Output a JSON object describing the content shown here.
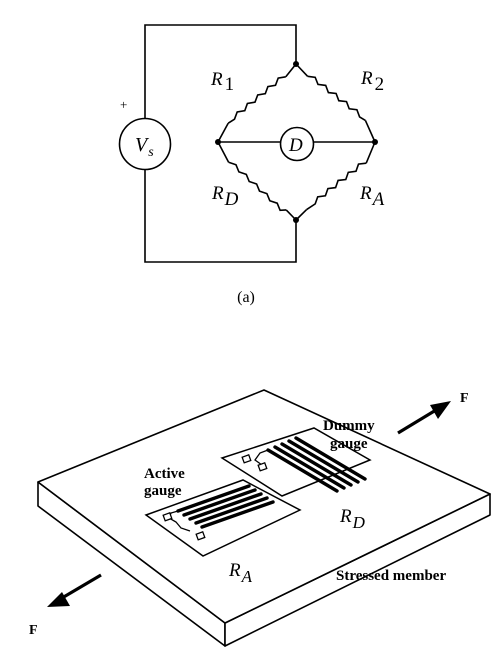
{
  "circuit": {
    "source_label": "V",
    "source_subscript": "s",
    "plus_sign": "+",
    "detector_label": "D",
    "r1": {
      "main": "R",
      "sub": "1"
    },
    "r2": {
      "main": "R",
      "sub": "2"
    },
    "rd": {
      "main": "R",
      "sub": "D"
    },
    "ra": {
      "main": "R",
      "sub": "A"
    },
    "caption": "(a)"
  },
  "assembly": {
    "force_top": "F",
    "force_bottom": "F",
    "active_line1": "Active",
    "active_line2": "gauge",
    "dummy_line1": "Dummy",
    "dummy_line2": "gauge",
    "ra": {
      "main": "R",
      "sub": "A"
    },
    "rd": {
      "main": "R",
      "sub": "D"
    },
    "member_label": "Stressed member"
  }
}
